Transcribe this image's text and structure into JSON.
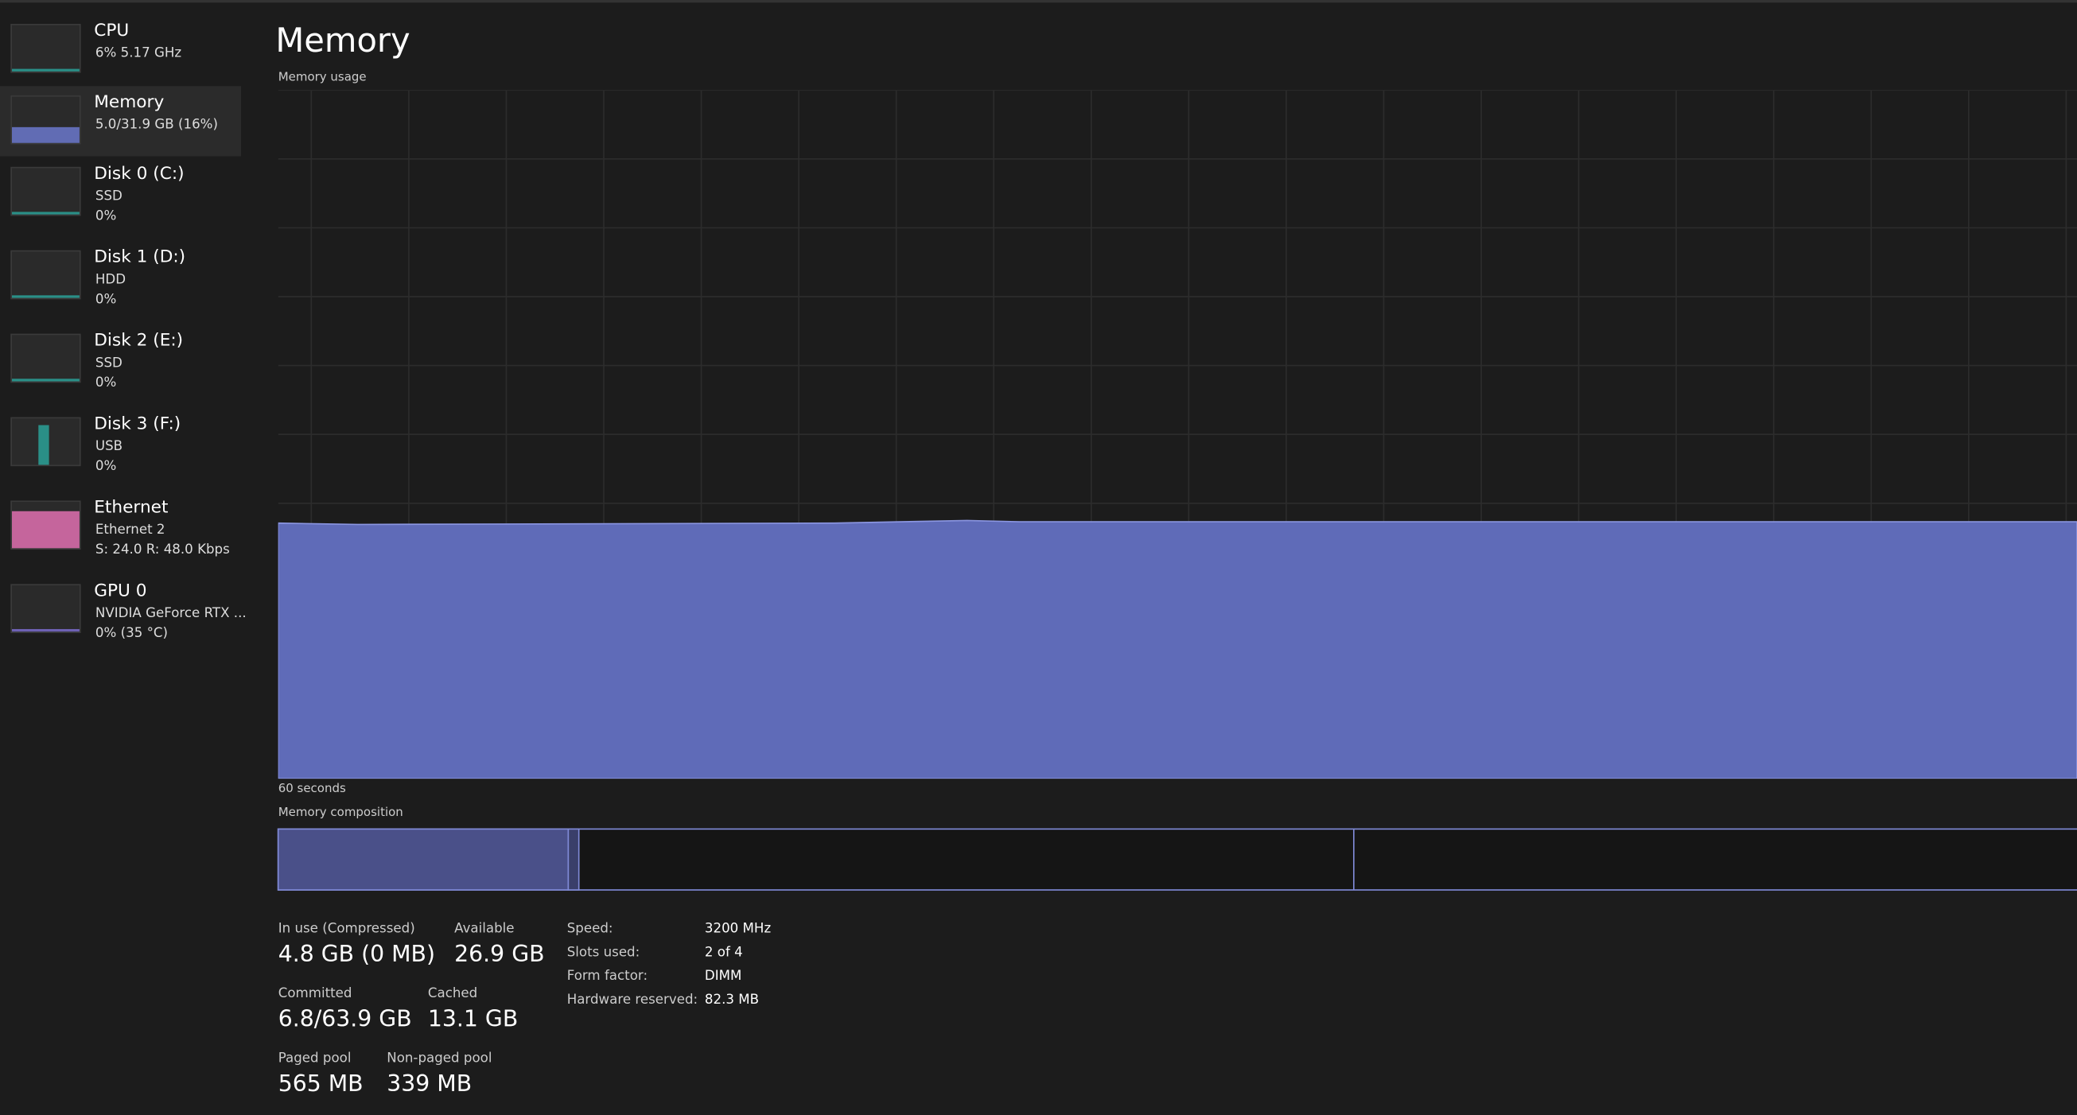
{
  "sidebar": [
    {
      "name": "CPU",
      "lines": [
        "6%  5.17 GHz"
      ]
    },
    {
      "name": "Memory",
      "lines": [
        "5.0/31.9 GB (16%)"
      ]
    },
    {
      "name": "Disk 0 (C:)",
      "lines": [
        "SSD",
        "0%"
      ]
    },
    {
      "name": "Disk 1 (D:)",
      "lines": [
        "HDD",
        "0%"
      ]
    },
    {
      "name": "Disk 2 (E:)",
      "lines": [
        "SSD",
        "0%"
      ]
    },
    {
      "name": "Disk 3 (F:)",
      "lines": [
        "USB",
        "0%"
      ]
    },
    {
      "name": "Ethernet",
      "lines": [
        "Ethernet 2",
        "S: 24.0  R: 48.0 Kbps"
      ]
    },
    {
      "name": "GPU 0",
      "lines": [
        "NVIDIA GeForce RTX ...",
        "0%  (35 °C)"
      ]
    }
  ],
  "header": {
    "title": "Memory"
  },
  "graph": {
    "label": "Memory usage",
    "time_label": "60 seconds"
  },
  "composition": {
    "label": "Memory composition"
  },
  "stats": [
    {
      "label": "In use (Compressed)",
      "value": "4.8 GB (0 MB)"
    },
    {
      "label": "Available",
      "value": "26.9 GB"
    },
    {
      "label": "Committed",
      "value": "6.8/63.9 GB"
    },
    {
      "label": "Cached",
      "value": "13.1 GB"
    },
    {
      "label": "Paged pool",
      "value": "565 MB"
    },
    {
      "label": "Non-paged pool",
      "value": "339 MB"
    }
  ],
  "details": [
    {
      "label": "Speed:",
      "value": "3200 MHz"
    },
    {
      "label": "Slots used:",
      "value": "2 of 4"
    },
    {
      "label": "Form factor:",
      "value": "DIMM"
    },
    {
      "label": "Hardware reserved:",
      "value": "82.3 MB"
    }
  ]
}
